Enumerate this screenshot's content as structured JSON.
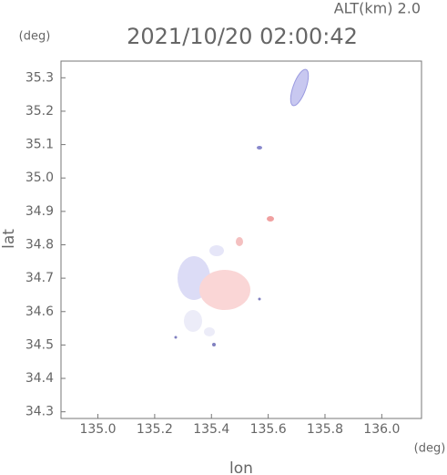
{
  "chart_data": {
    "type": "map",
    "title": "2021/10/20 02:00:42",
    "subtitle": "ALT(km) 2.0",
    "x_label": "lon",
    "y_label": "lat",
    "x_unit": "(deg)",
    "y_unit": "(deg)",
    "xlim": [
      134.87,
      136.14
    ],
    "ylim": [
      34.28,
      35.35
    ],
    "xticks": [
      {
        "value": 135,
        "label": "135.0"
      },
      135.2,
      135.4,
      135.6,
      135.8,
      {
        "value": 136,
        "label": "136.0"
      }
    ],
    "yticks": [
      34.3,
      34.4,
      34.5,
      34.6,
      34.7,
      34.8,
      34.9,
      {
        "value": 35,
        "label": "35.0"
      },
      35.1,
      35.2,
      35.3
    ]
  }
}
